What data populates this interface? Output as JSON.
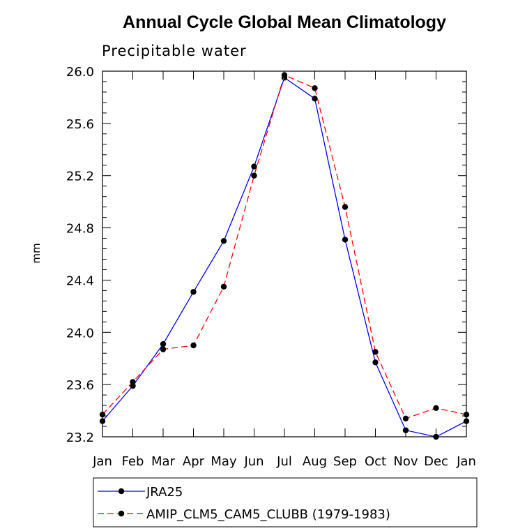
{
  "chart_data": {
    "type": "line",
    "title": "Annual Cycle Global Mean Climatology",
    "subtitle": "Precipitable water",
    "xlabel": "",
    "ylabel": "mm",
    "categories": [
      "Jan",
      "Feb",
      "Mar",
      "Apr",
      "May",
      "Jun",
      "Jul",
      "Aug",
      "Sep",
      "Oct",
      "Nov",
      "Dec",
      "Jan"
    ],
    "ylim": [
      23.2,
      26.0
    ],
    "yticks": [
      "23.2",
      "23.6",
      "24.0",
      "24.4",
      "24.8",
      "25.2",
      "25.6",
      "26.0"
    ],
    "grid": false,
    "legend_position": "bottom",
    "series": [
      {
        "name": "JRA25",
        "color": "#0000ff",
        "style": "solid",
        "values": [
          23.32,
          23.59,
          23.91,
          24.31,
          24.7,
          25.27,
          25.95,
          25.79,
          24.71,
          23.77,
          23.25,
          23.2,
          23.32
        ]
      },
      {
        "name": "AMIP_CLM5_CAM5_CLUBB (1979-1983)",
        "color": "#ff0000",
        "style": "dashed",
        "values": [
          23.37,
          23.62,
          23.87,
          23.9,
          24.35,
          25.2,
          25.97,
          25.87,
          24.96,
          23.85,
          23.34,
          23.42,
          23.37
        ]
      }
    ]
  }
}
